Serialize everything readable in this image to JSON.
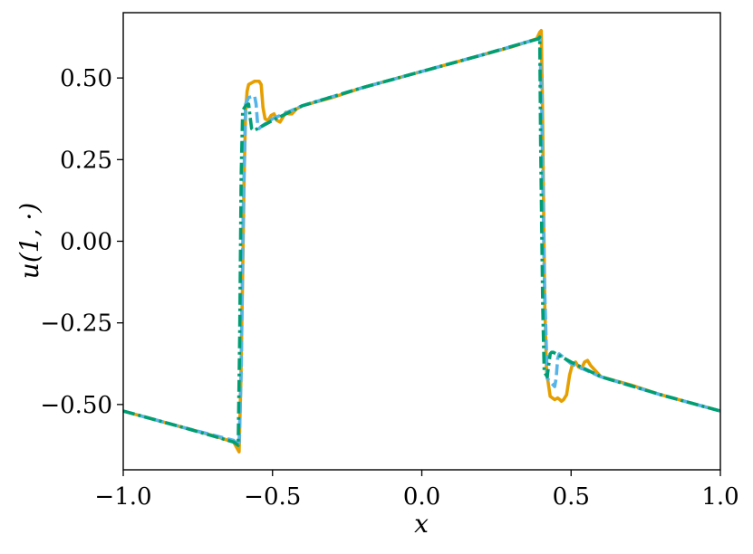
{
  "chart_data": {
    "type": "line",
    "title": "",
    "xlabel": "x",
    "ylabel": "u(1, ·)",
    "xlim": [
      -1.0,
      1.0
    ],
    "ylim": [
      -0.7,
      0.7
    ],
    "xticks": [
      -1.0,
      -0.5,
      0.0,
      0.5,
      1.0
    ],
    "xtick_labels": [
      "−1.0",
      "−0.5",
      "0.0",
      "0.5",
      "1.0"
    ],
    "yticks": [
      -0.5,
      -0.25,
      0.0,
      0.25,
      0.5
    ],
    "ytick_labels": [
      "−0.50",
      "−0.25",
      "0.00",
      "0.25",
      "0.50"
    ],
    "grid": false,
    "legend": "none",
    "series": [
      {
        "color": "#E69F00",
        "style": "solid",
        "x": [
          -1.0,
          -0.9,
          -0.8,
          -0.7,
          -0.63,
          -0.612,
          -0.606,
          -0.6,
          -0.595,
          -0.59,
          -0.585,
          -0.58,
          -0.57,
          -0.56,
          -0.545,
          -0.538,
          -0.532,
          -0.525,
          -0.515,
          -0.505,
          -0.495,
          -0.485,
          -0.475,
          -0.465,
          -0.455,
          -0.445,
          -0.435,
          -0.42,
          -0.4,
          -0.3,
          -0.2,
          -0.1,
          0.0,
          0.1,
          0.2,
          0.3,
          0.385,
          0.395,
          0.4,
          0.404,
          0.408,
          0.412,
          0.418,
          0.43,
          0.445,
          0.455,
          0.462,
          0.468,
          0.475,
          0.485,
          0.495,
          0.505,
          0.515,
          0.525,
          0.535,
          0.545,
          0.555,
          0.565,
          0.58,
          0.6,
          0.7,
          0.8,
          0.9,
          1.0
        ],
        "y": [
          -0.52,
          -0.545,
          -0.57,
          -0.595,
          -0.615,
          -0.645,
          -0.43,
          -0.1,
          0.2,
          0.4,
          0.46,
          0.48,
          0.485,
          0.49,
          0.49,
          0.48,
          0.41,
          0.375,
          0.37,
          0.385,
          0.39,
          0.37,
          0.365,
          0.38,
          0.395,
          0.39,
          0.39,
          0.405,
          0.415,
          0.44,
          0.47,
          0.495,
          0.52,
          0.545,
          0.57,
          0.595,
          0.62,
          0.64,
          0.645,
          0.43,
          0.1,
          -0.2,
          -0.4,
          -0.475,
          -0.485,
          -0.48,
          -0.485,
          -0.49,
          -0.485,
          -0.47,
          -0.41,
          -0.375,
          -0.37,
          -0.385,
          -0.39,
          -0.37,
          -0.365,
          -0.38,
          -0.395,
          -0.415,
          -0.44,
          -0.47,
          -0.495,
          -0.52
        ]
      },
      {
        "color": "#56B4E9",
        "style": "dashed",
        "x": [
          -1.0,
          -0.8,
          -0.63,
          -0.612,
          -0.605,
          -0.598,
          -0.59,
          -0.58,
          -0.56,
          -0.555,
          -0.55,
          -0.545,
          -0.54,
          -0.5,
          -0.4,
          -0.2,
          0.0,
          0.2,
          0.39,
          0.395,
          0.402,
          0.41,
          0.42,
          0.44,
          0.445,
          0.45,
          0.455,
          0.46,
          0.5,
          0.6,
          0.8,
          1.0
        ],
        "y": [
          -0.52,
          -0.57,
          -0.61,
          -0.625,
          -0.4,
          0.1,
          0.42,
          0.44,
          0.445,
          0.42,
          0.36,
          0.345,
          0.35,
          0.375,
          0.415,
          0.47,
          0.52,
          0.57,
          0.62,
          0.625,
          0.4,
          -0.1,
          -0.42,
          -0.44,
          -0.445,
          -0.42,
          -0.36,
          -0.345,
          -0.375,
          -0.415,
          -0.47,
          -0.52
        ]
      },
      {
        "color": "#009E73",
        "style": "dashdot",
        "x": [
          -1.0,
          -0.8,
          -0.63,
          -0.615,
          -0.61,
          -0.605,
          -0.6,
          -0.59,
          -0.58,
          -0.575,
          -0.57,
          -0.565,
          -0.56,
          -0.5,
          -0.4,
          -0.2,
          0.0,
          0.2,
          0.39,
          0.395,
          0.398,
          0.405,
          0.41,
          0.42,
          0.425,
          0.43,
          0.435,
          0.44,
          0.5,
          0.6,
          0.8,
          1.0
        ],
        "y": [
          -0.52,
          -0.57,
          -0.615,
          -0.625,
          -0.3,
          0.2,
          0.4,
          0.415,
          0.42,
          0.38,
          0.345,
          0.34,
          0.34,
          0.37,
          0.415,
          0.47,
          0.52,
          0.57,
          0.62,
          0.625,
          0.3,
          -0.2,
          -0.4,
          -0.415,
          -0.38,
          -0.345,
          -0.34,
          -0.34,
          -0.37,
          -0.415,
          -0.47,
          -0.52
        ]
      }
    ]
  }
}
